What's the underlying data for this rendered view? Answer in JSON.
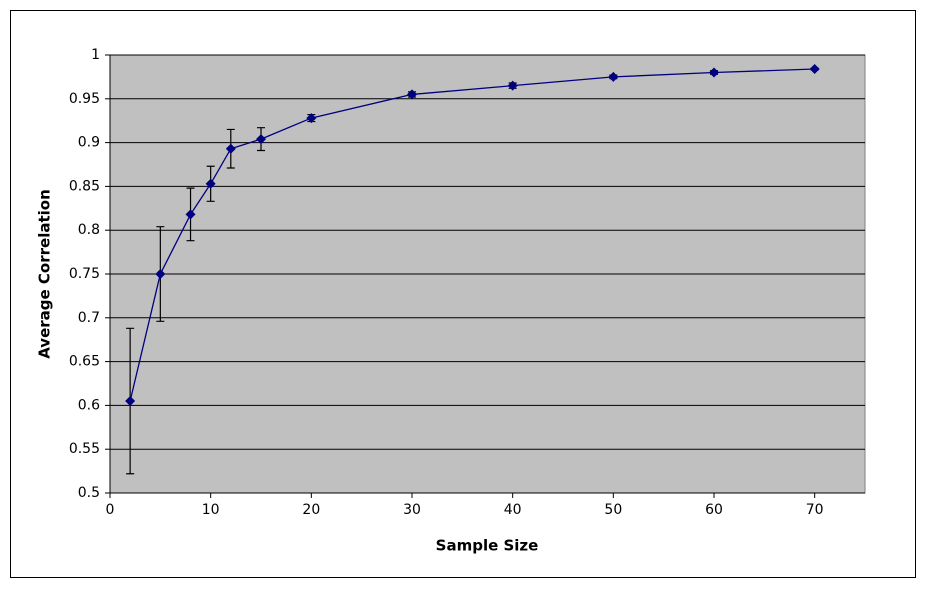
{
  "chart_data": {
    "type": "line",
    "x_label": "Sample Size",
    "y_label": "Average Correlation",
    "x": [
      2,
      5,
      8,
      10,
      12,
      15,
      20,
      30,
      40,
      50,
      60,
      70
    ],
    "series": [
      {
        "color": "#000080",
        "values": [
          0.605,
          0.75,
          0.818,
          0.853,
          0.893,
          0.904,
          0.928,
          0.955,
          0.965,
          0.975,
          0.98,
          0.984
        ],
        "errors": [
          0.083,
          0.054,
          0.03,
          0.02,
          0.022,
          0.013,
          0.004,
          0.003,
          0.003,
          0.002,
          0.002,
          0.001
        ]
      }
    ],
    "xlim": [
      0,
      75
    ],
    "xticks": [
      0,
      10,
      20,
      30,
      40,
      50,
      60,
      70
    ],
    "ylim": [
      0.5,
      1
    ],
    "yticks": [
      0.5,
      0.55,
      0.6,
      0.65,
      0.7,
      0.75,
      0.8,
      0.85,
      0.9,
      0.95,
      1
    ],
    "grid": true,
    "plot_background": "#c0c0c0"
  }
}
